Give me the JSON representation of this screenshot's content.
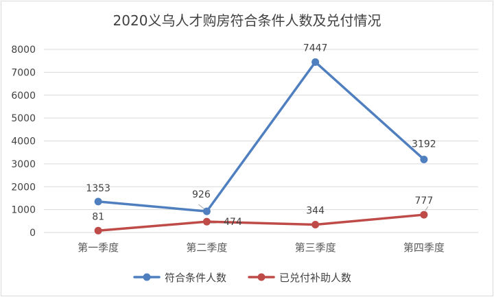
{
  "chart_data": {
    "type": "line",
    "title": "2020义乌人才购房符合条件人数及兑付情况",
    "categories": [
      "第一季度",
      "第二季度",
      "第三季度",
      "第四季度"
    ],
    "y_ticks": [
      "0",
      "1000",
      "2000",
      "3000",
      "4000",
      "5000",
      "6000",
      "7000",
      "8000"
    ],
    "ylim": [
      0,
      8000
    ],
    "grid": true,
    "legend_position": "bottom",
    "series": [
      {
        "name": "符合条件人数",
        "color": "#4f7fbf",
        "values": [
          1353,
          926,
          7447,
          3192
        ],
        "labels": [
          "1353",
          "926",
          "7447",
          "3192"
        ]
      },
      {
        "name": "已兑付补助人数",
        "color": "#be4b48",
        "values": [
          81,
          474,
          344,
          777
        ],
        "labels": [
          "81",
          "474",
          "344",
          "777"
        ]
      }
    ]
  }
}
